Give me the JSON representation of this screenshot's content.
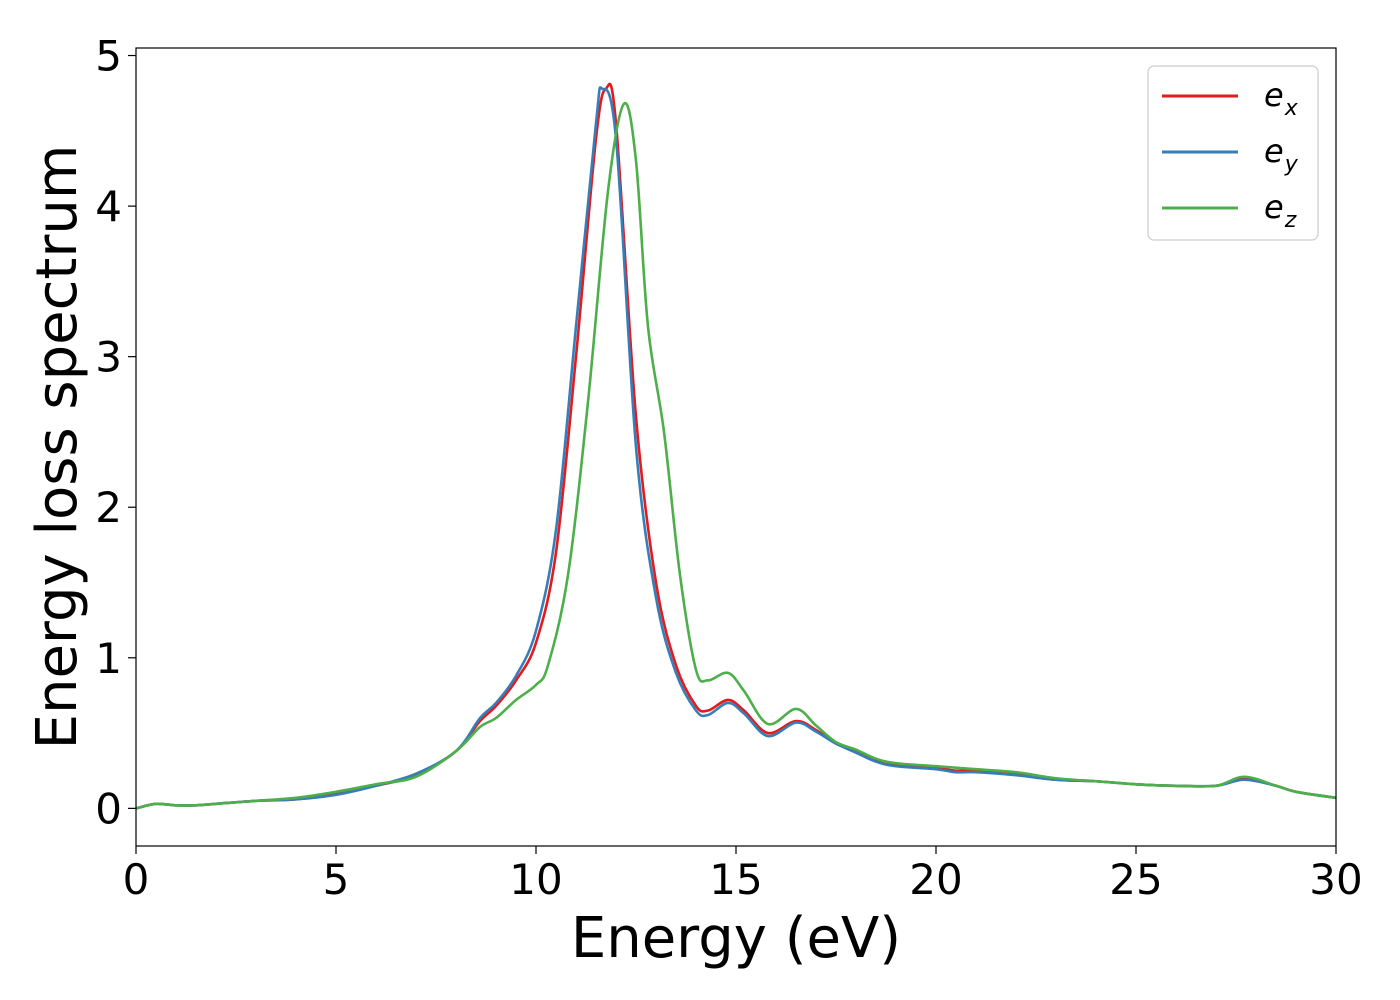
{
  "chart_data": {
    "type": "line",
    "xlabel": "Energy (eV)",
    "ylabel": "Energy loss spectrum",
    "xlim": [
      0,
      30
    ],
    "ylim": [
      -0.25,
      5.05
    ],
    "xticks": [
      0,
      5,
      10,
      15,
      20,
      25,
      30
    ],
    "yticks": [
      0,
      1,
      2,
      3,
      4,
      5
    ],
    "grid": false,
    "legend_position": "top-right",
    "series": [
      {
        "name": "e",
        "name_sub": "x",
        "color": "#e41a1c",
        "points": [
          [
            0,
            0.0
          ],
          [
            0.5,
            0.03
          ],
          [
            1,
            0.02
          ],
          [
            1.5,
            0.02
          ],
          [
            2,
            0.03
          ],
          [
            3,
            0.05
          ],
          [
            4,
            0.06
          ],
          [
            5,
            0.1
          ],
          [
            6,
            0.15
          ],
          [
            7,
            0.22
          ],
          [
            8,
            0.38
          ],
          [
            8.6,
            0.58
          ],
          [
            9,
            0.68
          ],
          [
            9.5,
            0.85
          ],
          [
            10,
            1.1
          ],
          [
            10.5,
            1.7
          ],
          [
            11,
            3.0
          ],
          [
            11.5,
            4.45
          ],
          [
            11.75,
            4.78
          ],
          [
            12,
            4.55
          ],
          [
            12.5,
            2.6
          ],
          [
            13,
            1.5
          ],
          [
            13.5,
            0.95
          ],
          [
            14,
            0.68
          ],
          [
            14.3,
            0.65
          ],
          [
            14.8,
            0.72
          ],
          [
            15.2,
            0.65
          ],
          [
            15.8,
            0.5
          ],
          [
            16.5,
            0.58
          ],
          [
            17,
            0.52
          ],
          [
            17.5,
            0.43
          ],
          [
            18,
            0.38
          ],
          [
            18.5,
            0.32
          ],
          [
            19,
            0.29
          ],
          [
            20,
            0.27
          ],
          [
            20.5,
            0.25
          ],
          [
            21,
            0.25
          ],
          [
            22,
            0.23
          ],
          [
            23,
            0.19
          ],
          [
            24,
            0.18
          ],
          [
            25,
            0.16
          ],
          [
            26,
            0.15
          ],
          [
            27,
            0.15
          ],
          [
            27.7,
            0.2
          ],
          [
            28.5,
            0.15
          ],
          [
            29,
            0.11
          ],
          [
            30,
            0.07
          ]
        ]
      },
      {
        "name": "e",
        "name_sub": "y",
        "color": "#377eb8",
        "points": [
          [
            0,
            0.0
          ],
          [
            0.5,
            0.03
          ],
          [
            1,
            0.02
          ],
          [
            1.5,
            0.02
          ],
          [
            2,
            0.03
          ],
          [
            3,
            0.05
          ],
          [
            4,
            0.06
          ],
          [
            5,
            0.09
          ],
          [
            6,
            0.15
          ],
          [
            7,
            0.23
          ],
          [
            8,
            0.38
          ],
          [
            8.6,
            0.6
          ],
          [
            9,
            0.7
          ],
          [
            9.5,
            0.88
          ],
          [
            10,
            1.18
          ],
          [
            10.5,
            1.85
          ],
          [
            11,
            3.2
          ],
          [
            11.5,
            4.55
          ],
          [
            11.65,
            4.78
          ],
          [
            12,
            4.45
          ],
          [
            12.5,
            2.4
          ],
          [
            13,
            1.4
          ],
          [
            13.5,
            0.9
          ],
          [
            14,
            0.65
          ],
          [
            14.3,
            0.62
          ],
          [
            14.8,
            0.7
          ],
          [
            15.2,
            0.63
          ],
          [
            15.8,
            0.48
          ],
          [
            16.5,
            0.57
          ],
          [
            17,
            0.51
          ],
          [
            17.5,
            0.43
          ],
          [
            18,
            0.37
          ],
          [
            18.5,
            0.31
          ],
          [
            19,
            0.28
          ],
          [
            20,
            0.26
          ],
          [
            20.5,
            0.24
          ],
          [
            21,
            0.24
          ],
          [
            22,
            0.22
          ],
          [
            23,
            0.19
          ],
          [
            24,
            0.18
          ],
          [
            25,
            0.16
          ],
          [
            26,
            0.15
          ],
          [
            27,
            0.15
          ],
          [
            27.7,
            0.19
          ],
          [
            28.5,
            0.15
          ],
          [
            29,
            0.11
          ],
          [
            30,
            0.07
          ]
        ]
      },
      {
        "name": "e",
        "name_sub": "z",
        "color": "#4daf4a",
        "points": [
          [
            0,
            0.0
          ],
          [
            0.5,
            0.03
          ],
          [
            1,
            0.02
          ],
          [
            1.5,
            0.02
          ],
          [
            2,
            0.03
          ],
          [
            3,
            0.05
          ],
          [
            4,
            0.07
          ],
          [
            5,
            0.11
          ],
          [
            6,
            0.16
          ],
          [
            7,
            0.21
          ],
          [
            8,
            0.38
          ],
          [
            8.6,
            0.54
          ],
          [
            9,
            0.6
          ],
          [
            9.5,
            0.72
          ],
          [
            10,
            0.82
          ],
          [
            10.3,
            0.95
          ],
          [
            10.8,
            1.55
          ],
          [
            11.3,
            2.7
          ],
          [
            11.8,
            4.1
          ],
          [
            12.2,
            4.68
          ],
          [
            12.5,
            4.3
          ],
          [
            12.8,
            3.2
          ],
          [
            13.2,
            2.5
          ],
          [
            13.6,
            1.55
          ],
          [
            14,
            0.92
          ],
          [
            14.3,
            0.85
          ],
          [
            14.8,
            0.9
          ],
          [
            15.2,
            0.78
          ],
          [
            15.8,
            0.56
          ],
          [
            16.5,
            0.66
          ],
          [
            17,
            0.55
          ],
          [
            17.5,
            0.44
          ],
          [
            18,
            0.39
          ],
          [
            18.5,
            0.33
          ],
          [
            19,
            0.3
          ],
          [
            20,
            0.28
          ],
          [
            20.5,
            0.27
          ],
          [
            21,
            0.26
          ],
          [
            22,
            0.24
          ],
          [
            23,
            0.2
          ],
          [
            24,
            0.18
          ],
          [
            25,
            0.16
          ],
          [
            26,
            0.15
          ],
          [
            27,
            0.15
          ],
          [
            27.7,
            0.21
          ],
          [
            28.5,
            0.15
          ],
          [
            29,
            0.11
          ],
          [
            30,
            0.07
          ]
        ]
      }
    ]
  }
}
